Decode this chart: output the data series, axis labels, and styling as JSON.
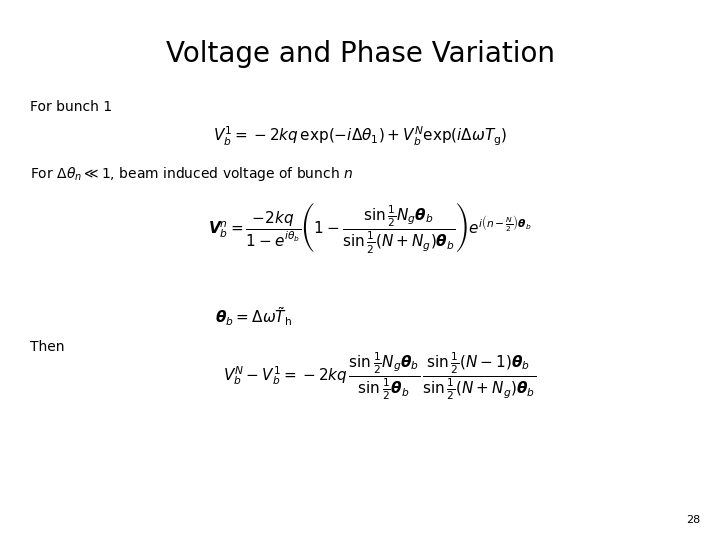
{
  "title": "Voltage and Phase Variation",
  "page_number": "28",
  "background_color": "#ffffff",
  "title_fontsize": 20,
  "body_fontsize": 10,
  "eq_fontsize": 11,
  "text_color": "#000000",
  "figsize": [
    7.2,
    5.4
  ],
  "dpi": 100
}
